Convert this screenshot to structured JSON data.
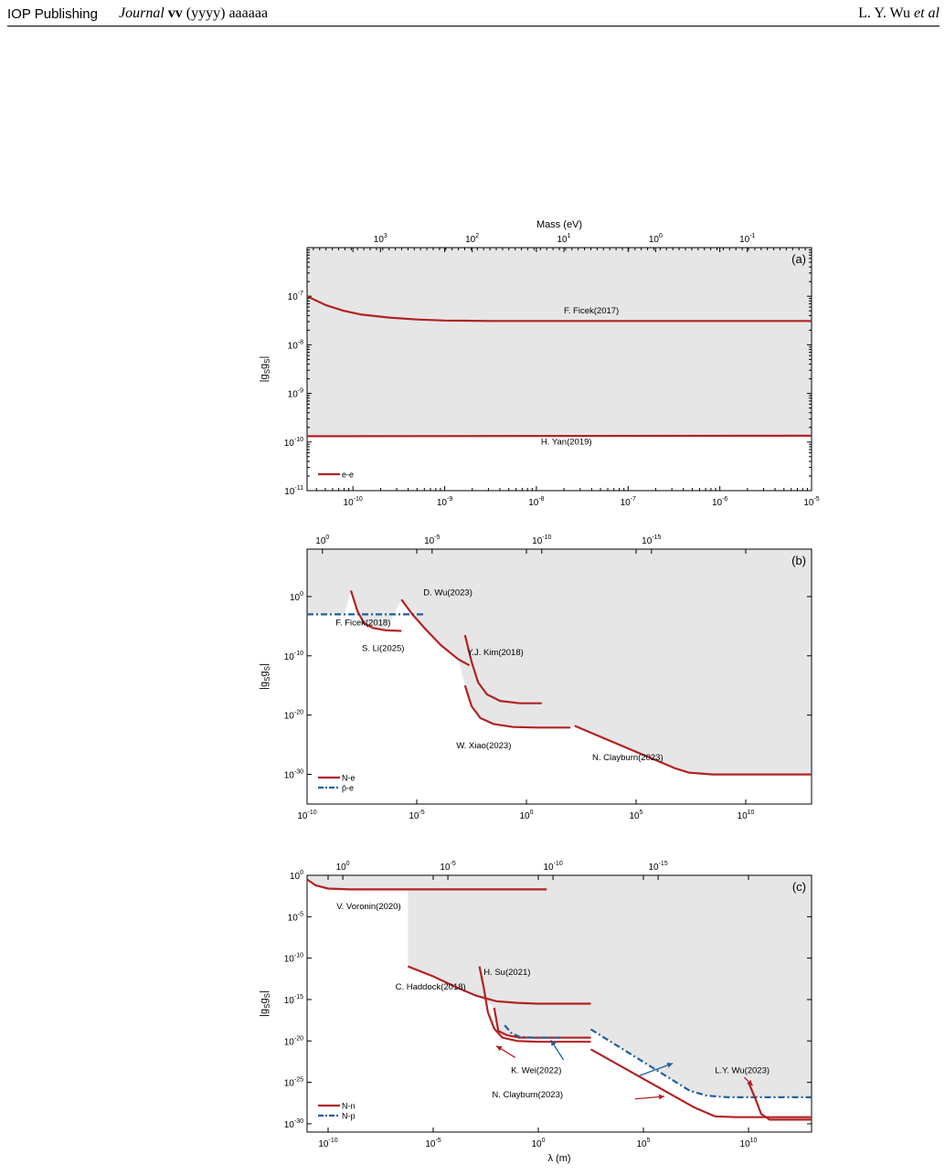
{
  "header": {
    "publisher": "IOP Publishing",
    "journal_word": "Journal",
    "journal_volume": "vv",
    "journal_year": "(yyyy)",
    "journal_article": "aaaaaa",
    "author_plain": "L. Y. Wu",
    "author_italic": "et al"
  },
  "colors": {
    "nn_red": "#b22222",
    "np_blue": "#1f5fa0",
    "excluded_gray": "#e6e6e6"
  },
  "chart_data": [
    {
      "panel": "(a)",
      "type": "line",
      "top_axis_label": "Mass (eV)",
      "top_ticks": [
        {
          "exp": "3",
          "x": -9.7
        },
        {
          "exp": "2",
          "x": -8.7
        },
        {
          "exp": "1",
          "x": -7.7
        },
        {
          "exp": "0",
          "x": -6.7
        },
        {
          "exp": "-1",
          "x": -5.7
        }
      ],
      "x_scale": "log",
      "xlim_log10": [
        -10.5,
        -5
      ],
      "x_ticks_exp": [
        "-10",
        "-9",
        "-8",
        "-7",
        "-6",
        "-5"
      ],
      "y_scale": "log",
      "ylim_log10": [
        -11,
        -6
      ],
      "y_ticks_exp": [
        "-7",
        "-8",
        "-9",
        "-10",
        "-11"
      ],
      "ylabel": "|g",
      "ylabel_sub1": "S",
      "ylabel_mid": "g",
      "ylabel_sub2": "S",
      "ylabel_end": "|",
      "legend": [
        {
          "name": "e-e",
          "style": "solid",
          "color": "#b22222"
        }
      ],
      "series": [
        {
          "label": "F. Ficek(2017)",
          "style": "solid",
          "points": [
            [
              -10.5,
              -7.0
            ],
            [
              -10.3,
              -7.18
            ],
            [
              -10.1,
              -7.3
            ],
            [
              -9.9,
              -7.38
            ],
            [
              -9.6,
              -7.44
            ],
            [
              -9.3,
              -7.48
            ],
            [
              -9.0,
              -7.5
            ],
            [
              -8.5,
              -7.51
            ],
            [
              -8.0,
              -7.51
            ],
            [
              -5.0,
              -7.51
            ]
          ]
        },
        {
          "label": "H. Yan(2019)",
          "style": "solid",
          "points": [
            [
              -10.5,
              -9.88
            ],
            [
              -5.0,
              -9.87
            ]
          ]
        }
      ],
      "annotations": [
        {
          "text": "F. Ficek(2017)",
          "x": -7.7,
          "y": -7.35
        },
        {
          "text": "H. Yan(2019)",
          "x": -7.95,
          "y": -10.05
        }
      ]
    },
    {
      "panel": "(b)",
      "type": "line",
      "top_ticks": [
        {
          "exp": "0",
          "x": -9.3
        },
        {
          "exp": "-5",
          "x": -4.3
        },
        {
          "exp": "-10",
          "x": 0.7
        },
        {
          "exp": "-15",
          "x": 5.7
        }
      ],
      "x_scale": "log",
      "xlim_log10": [
        -10,
        13
      ],
      "x_ticks_exp": [
        "-10",
        "-5",
        "0",
        "5",
        "10"
      ],
      "y_scale": "log",
      "ylim_log10": [
        -35,
        8
      ],
      "y_ticks_exp": [
        "0",
        "-10",
        "-20",
        "-30"
      ],
      "ylabel": "|g",
      "ylabel_sub1": "S",
      "ylabel_mid": "g",
      "ylabel_sub2": "S",
      "ylabel_end": "|",
      "legend": [
        {
          "name": "N-e",
          "style": "solid",
          "color": "#b22222"
        },
        {
          "name": "p̄-e",
          "style": "dashdot",
          "color": "#1f5fa0"
        }
      ],
      "series": [
        {
          "label": "F. Ficek(2018)",
          "style": "dashdot",
          "color": "np_blue",
          "points": [
            [
              -10.0,
              -3.0
            ],
            [
              -4.6,
              -3.0
            ]
          ]
        },
        {
          "label": "S. Li(2025)",
          "style": "solid",
          "points": [
            [
              -8.0,
              1.0
            ],
            [
              -7.7,
              -2.5
            ],
            [
              -7.4,
              -4.5
            ],
            [
              -7.0,
              -5.3
            ],
            [
              -6.4,
              -5.7
            ],
            [
              -5.7,
              -5.8
            ]
          ]
        },
        {
          "label": "D. Wu(2023)",
          "style": "solid",
          "points": [
            [
              -5.7,
              -0.5
            ],
            [
              -5.2,
              -3.0
            ],
            [
              -4.6,
              -5.5
            ],
            [
              -3.9,
              -8.2
            ],
            [
              -3.1,
              -10.6
            ],
            [
              -2.6,
              -11.6
            ]
          ]
        },
        {
          "label": "Y.J. Kim(2018)",
          "style": "solid",
          "points": [
            [
              -2.8,
              -6.5
            ],
            [
              -2.5,
              -11.0
            ],
            [
              -2.2,
              -14.5
            ],
            [
              -1.8,
              -16.5
            ],
            [
              -1.2,
              -17.6
            ],
            [
              -0.3,
              -18.0
            ],
            [
              0.7,
              -18.0
            ]
          ]
        },
        {
          "label": "W. Xiao(2023)",
          "style": "solid",
          "points": [
            [
              -2.8,
              -15.0
            ],
            [
              -2.5,
              -18.5
            ],
            [
              -2.1,
              -20.5
            ],
            [
              -1.5,
              -21.5
            ],
            [
              -0.6,
              -22.0
            ],
            [
              0.5,
              -22.1
            ],
            [
              2.0,
              -22.1
            ]
          ]
        },
        {
          "label": "N. Clayburn(2023)",
          "style": "solid",
          "points": [
            [
              2.2,
              -21.8
            ],
            [
              6.8,
              -29.0
            ],
            [
              7.4,
              -29.7
            ],
            [
              8.5,
              -30.0
            ],
            [
              13.0,
              -30.0
            ]
          ]
        }
      ],
      "annotations": [
        {
          "text": "D. Wu(2023)",
          "x": -4.7,
          "y": 0.2
        },
        {
          "text": "F. Ficek(2018)",
          "x": -8.7,
          "y": -4.9
        },
        {
          "text": "S. Li(2025)",
          "x": -7.5,
          "y": -9.2
        },
        {
          "text": "Y.J. Kim(2018)",
          "x": -2.7,
          "y": -9.9
        },
        {
          "text": "W. Xiao(2023)",
          "x": -3.2,
          "y": -25.6
        },
        {
          "text": "N. Clayburn(2023)",
          "x": 3.0,
          "y": -27.6
        }
      ]
    },
    {
      "panel": "(c)",
      "type": "line",
      "top_ticks": [
        {
          "exp": "0",
          "x": -9.3
        },
        {
          "exp": "-5",
          "x": -4.3
        },
        {
          "exp": "-10",
          "x": 0.7
        },
        {
          "exp": "-15",
          "x": 5.7
        }
      ],
      "x_scale": "log",
      "xlim_log10": [
        -11,
        13
      ],
      "x_ticks_exp": [
        "-10",
        "-5",
        "0",
        "5",
        "10"
      ],
      "xlabel": "λ (m)",
      "y_scale": "log",
      "ylim_log10": [
        -31,
        0
      ],
      "y_ticks_exp": [
        "0",
        "-5",
        "-10",
        "-15",
        "-20",
        "-25",
        "-30"
      ],
      "ylabel": "|g",
      "ylabel_sub1": "S",
      "ylabel_mid": "g",
      "ylabel_sub2": "S",
      "ylabel_end": "|",
      "legend": [
        {
          "name": "N-n",
          "style": "solid",
          "color": "#b22222"
        },
        {
          "name": "N-p",
          "style": "dashdot",
          "color": "#1f5fa0"
        }
      ],
      "series": [
        {
          "label": "V. Voronin(2020)",
          "style": "solid",
          "points": [
            [
              -11.0,
              -0.5
            ],
            [
              -10.6,
              -1.2
            ],
            [
              -10.0,
              -1.6
            ],
            [
              -9.0,
              -1.7
            ],
            [
              0.4,
              -1.7
            ]
          ]
        },
        {
          "label": "C. Haddock(2018)",
          "style": "solid",
          "points": [
            [
              -6.2,
              -11.0
            ],
            [
              -5.0,
              -12.2
            ],
            [
              -4.0,
              -13.4
            ],
            [
              -3.0,
              -14.5
            ],
            [
              -2.0,
              -15.2
            ],
            [
              -1.0,
              -15.4
            ],
            [
              0.0,
              -15.5
            ],
            [
              2.5,
              -15.5
            ]
          ]
        },
        {
          "label": "H. Su(2021)",
          "style": "solid",
          "points": [
            [
              -2.8,
              -11.0
            ],
            [
              -2.6,
              -13.5
            ],
            [
              -2.4,
              -16.5
            ],
            [
              -2.1,
              -18.5
            ],
            [
              -1.7,
              -19.6
            ],
            [
              -1.0,
              -20.0
            ],
            [
              0.0,
              -20.1
            ],
            [
              2.5,
              -20.1
            ]
          ]
        },
        {
          "label": "K. Wei(2022)",
          "style": "solid",
          "points": [
            [
              -2.1,
              -16.0
            ],
            [
              -1.9,
              -18.8
            ],
            [
              -1.5,
              -19.3
            ],
            [
              -0.9,
              -19.6
            ],
            [
              0.0,
              -19.6
            ],
            [
              2.5,
              -19.6
            ]
          ]
        },
        {
          "label": "K. Wei(2022)",
          "style": "dashdot",
          "color": "np_blue",
          "points": [
            [
              -1.6,
              -18.1
            ],
            [
              -1.3,
              -19.0
            ],
            [
              -0.9,
              -19.5
            ],
            [
              -0.2,
              -19.6
            ],
            [
              1.0,
              -19.6
            ]
          ]
        },
        {
          "label": "N. Clayburn(2023)",
          "style": "solid",
          "points": [
            [
              2.5,
              -21.0
            ],
            [
              7.4,
              -28.0
            ],
            [
              8.4,
              -29.1
            ],
            [
              9.4,
              -29.2
            ],
            [
              13.0,
              -29.2
            ]
          ]
        },
        {
          "label": "N. Clayburn(2023)",
          "style": "dashdot",
          "color": "np_blue",
          "points": [
            [
              2.5,
              -18.6
            ],
            [
              7.2,
              -26.0
            ],
            [
              8.0,
              -26.6
            ],
            [
              9.0,
              -26.8
            ],
            [
              13.0,
              -26.8
            ]
          ]
        },
        {
          "label": "L.Y. Wu(2023)",
          "style": "solid",
          "points": [
            [
              10.0,
              -25.0
            ],
            [
              10.3,
              -26.8
            ],
            [
              10.6,
              -28.8
            ],
            [
              11.0,
              -29.5
            ],
            [
              11.8,
              -29.5
            ],
            [
              13.0,
              -29.5
            ]
          ]
        }
      ],
      "annotations": [
        {
          "text": "V. Voronin(2020)",
          "x": -9.6,
          "y": -4.1
        },
        {
          "text": "H. Su(2021)",
          "x": -2.6,
          "y": -12.0
        },
        {
          "text": "C. Haddock(2018)",
          "x": -6.8,
          "y": -13.8
        },
        {
          "text": "K. Wei(2022)",
          "x": -1.3,
          "y": -23.9
        },
        {
          "text": "L.Y. Wu(2023)",
          "x": 8.4,
          "y": -23.9
        },
        {
          "text": "N. Clayburn(2023)",
          "x": -2.2,
          "y": -26.8
        }
      ]
    }
  ]
}
